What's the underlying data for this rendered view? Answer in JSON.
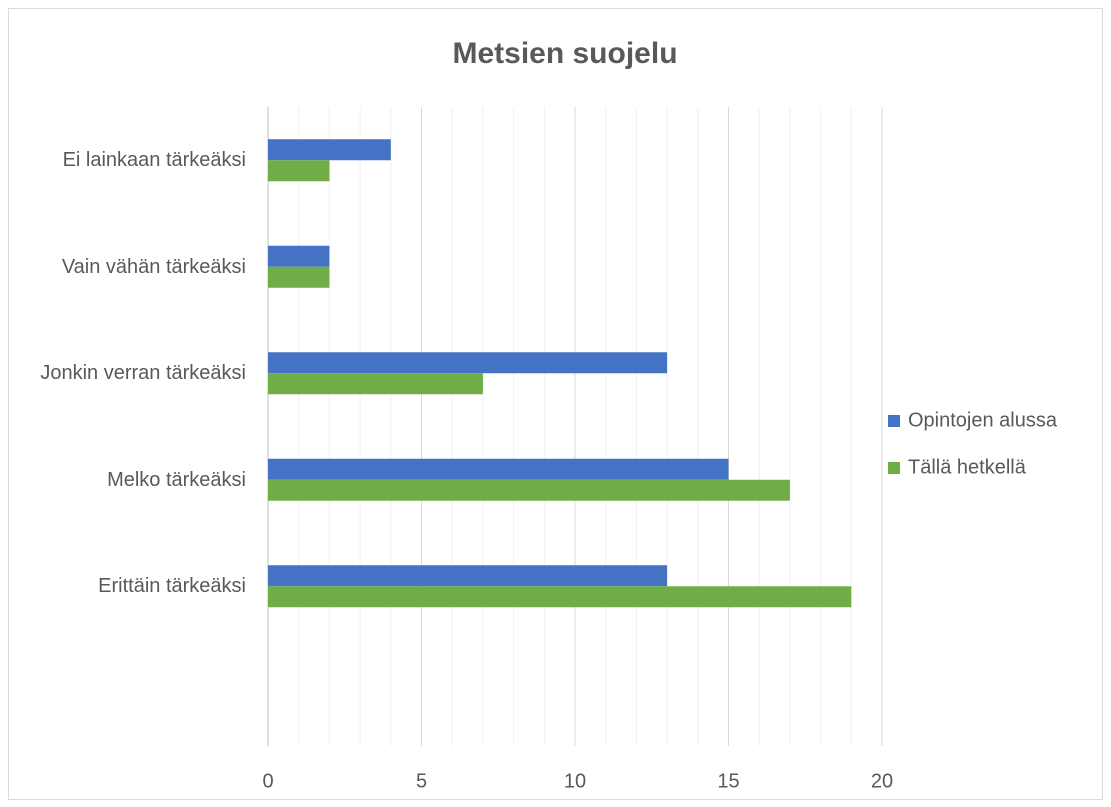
{
  "chart_data": {
    "type": "hbar",
    "title": "Metsien suojelu",
    "categories": [
      "Ei lainkaan tärkeäksi",
      "Vain vähän tärkeäksi",
      "Jonkin verran tärkeäksi",
      "Melko tärkeäksi",
      "Erittäin tärkeäksi",
      null
    ],
    "series": [
      {
        "name": "Opintojen alussa",
        "color": "#4472c4",
        "values": [
          4,
          2,
          13,
          15,
          13,
          null
        ]
      },
      {
        "name": "Tällä hetkellä",
        "color": "#70ad47",
        "values": [
          2,
          2,
          7,
          17,
          19,
          null
        ]
      }
    ],
    "xlim": [
      0,
      20
    ],
    "xticks": [
      0,
      5,
      10,
      15,
      20
    ],
    "xminorticks": [
      1,
      2,
      3,
      4,
      6,
      7,
      8,
      9,
      11,
      12,
      13,
      14,
      16,
      17,
      18,
      19
    ],
    "grid": true,
    "legend": "right"
  }
}
